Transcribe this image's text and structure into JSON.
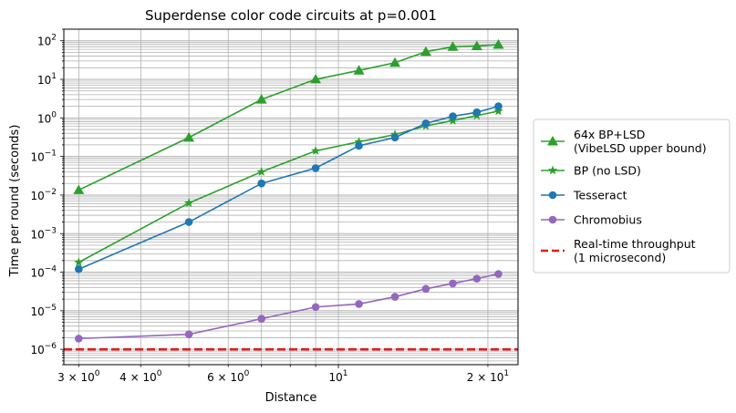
{
  "chart_data": {
    "type": "line",
    "title": "Superdense color code circuits at p=0.001",
    "xlabel": "Distance",
    "ylabel": "Time per round (seconds)",
    "x_scale": "log",
    "y_scale": "log",
    "xlim": [
      2.8,
      23
    ],
    "ylim": [
      4e-07,
      200
    ],
    "grid": "both (major and minor)",
    "legend_placement": "outside right",
    "x_tick_labels": [
      {
        "value": 3,
        "base": "3",
        "exp": "0"
      },
      {
        "value": 4,
        "base": "4",
        "exp": "0"
      },
      {
        "value": 6,
        "base": "6",
        "exp": "0"
      },
      {
        "value": 10,
        "base": "10",
        "exp": "1"
      },
      {
        "value": 20,
        "base": "2",
        "exp": "1"
      }
    ],
    "y_tick_labels": [
      {
        "value": 1e-06,
        "exp": "−6"
      },
      {
        "value": 1e-05,
        "exp": "−5"
      },
      {
        "value": 0.0001,
        "exp": "−4"
      },
      {
        "value": 0.001,
        "exp": "−3"
      },
      {
        "value": 0.01,
        "exp": "−2"
      },
      {
        "value": 0.1,
        "exp": "−1"
      },
      {
        "value": 1,
        "exp": "0"
      },
      {
        "value": 10,
        "exp": "1"
      },
      {
        "value": 100,
        "exp": "2"
      }
    ],
    "tick_times": "×",
    "tick_base_10": "10",
    "series": [
      {
        "name": "64x BP+LSD\n(VibeLSD upper bound)",
        "color": "#2ca02c",
        "marker": "triangle",
        "x": [
          3,
          5,
          7,
          9,
          11,
          13,
          15,
          17,
          19,
          21
        ],
        "y": [
          0.0135,
          0.31,
          3.0,
          10.0,
          17.0,
          27.0,
          52.0,
          70.0,
          73.0,
          80.0
        ]
      },
      {
        "name": "BP (no LSD)",
        "color": "#2ca02c",
        "marker": "star",
        "x": [
          3,
          5,
          7,
          9,
          11,
          13,
          15,
          17,
          19,
          21
        ],
        "y": [
          0.00018,
          0.0062,
          0.04,
          0.14,
          0.24,
          0.37,
          0.62,
          0.85,
          1.15,
          1.5
        ]
      },
      {
        "name": "Tesseract",
        "color": "#1f77b4",
        "marker": "circle",
        "x": [
          3,
          5,
          7,
          9,
          11,
          13,
          15,
          17,
          19,
          21
        ],
        "y": [
          0.00012,
          0.002,
          0.02,
          0.05,
          0.19,
          0.31,
          0.72,
          1.1,
          1.4,
          2.0
        ]
      },
      {
        "name": "Chromobius",
        "color": "#9467bd",
        "marker": "circle",
        "x": [
          3,
          5,
          7,
          9,
          11,
          13,
          15,
          17,
          19,
          21
        ],
        "y": [
          1.9e-06,
          2.45e-06,
          6.2e-06,
          1.25e-05,
          1.5e-05,
          2.3e-05,
          3.7e-05,
          5.1e-05,
          6.8e-05,
          9e-05
        ]
      },
      {
        "name": "Real-time throughput\n(1 microsecond)",
        "color": "#e31a1c",
        "marker": "none",
        "line_style": "dashed",
        "y_constant": 1e-06
      }
    ]
  }
}
